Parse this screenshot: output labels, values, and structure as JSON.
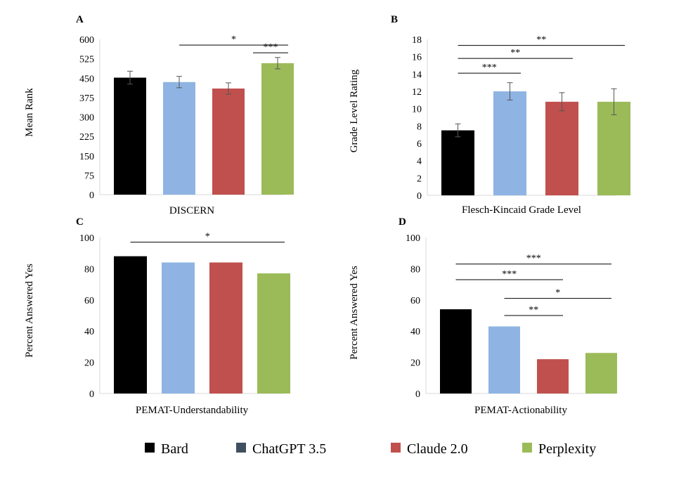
{
  "colors": {
    "bard": "#000000",
    "chatgpt": "#8fb4e3",
    "claude": "#c0504d",
    "perplexity": "#9bbb59",
    "legend_chatgpt": "#3f4f5f",
    "axis": "#d9d9d9",
    "errorbar": "#555555"
  },
  "legend": {
    "items": [
      {
        "label": "Bard",
        "color_key": "bard"
      },
      {
        "label": "ChatGPT 3.5",
        "color_key": "legend_chatgpt"
      },
      {
        "label": "Claude 2.0",
        "color_key": "claude"
      },
      {
        "label": "Perplexity",
        "color_key": "perplexity"
      }
    ]
  },
  "chart_data": [
    {
      "panel": "A",
      "type": "bar",
      "xlabel": "DISCERN",
      "ylabel": "Mean Rank",
      "ylim": [
        0,
        600
      ],
      "yticks": [
        0,
        75,
        150,
        225,
        300,
        375,
        450,
        525,
        600
      ],
      "values": [
        452,
        435,
        410,
        508
      ],
      "errors": [
        25,
        22,
        22,
        22
      ],
      "significance": [
        {
          "from": 1,
          "to": 3,
          "label": "*",
          "y": 578
        },
        {
          "from": 2.5,
          "to": 3,
          "label": "***",
          "y": 548
        }
      ]
    },
    {
      "panel": "B",
      "type": "bar",
      "xlabel": "Flesch-Kincaid Grade Level",
      "ylabel": "Grade Level Rating",
      "ylim": [
        0,
        18
      ],
      "yticks": [
        0,
        2,
        4,
        6,
        8,
        10,
        12,
        14,
        16,
        18
      ],
      "values": [
        7.5,
        12.0,
        10.8,
        10.8
      ],
      "errors": [
        0.75,
        1.0,
        1.05,
        1.5
      ],
      "significance": [
        {
          "from": 0,
          "to": 3,
          "label": "**",
          "y": 17.3
        },
        {
          "from": 0,
          "to": 2,
          "label": "**",
          "y": 15.8
        },
        {
          "from": 0,
          "to": 1,
          "label": "***",
          "y": 14.1
        }
      ]
    },
    {
      "panel": "C",
      "type": "bar",
      "xlabel": "PEMAT-Understandability",
      "ylabel": "Percent Answered Yes",
      "ylim": [
        0,
        100
      ],
      "yticks": [
        0,
        20,
        40,
        60,
        80,
        100
      ],
      "values": [
        88,
        84,
        84,
        77
      ],
      "errors": null,
      "significance": [
        {
          "from": 0,
          "to": 3,
          "label": "*",
          "y": 97
        }
      ]
    },
    {
      "panel": "D",
      "type": "bar",
      "xlabel": "PEMAT-Actionability",
      "ylabel": "Percent Answered Yes",
      "ylim": [
        0,
        100
      ],
      "yticks": [
        0,
        20,
        40,
        60,
        80,
        100
      ],
      "values": [
        54,
        43,
        22,
        26
      ],
      "errors": null,
      "significance": [
        {
          "from": 0,
          "to": 3,
          "label": "***",
          "y": 83
        },
        {
          "from": 0,
          "to": 2,
          "label": "***",
          "y": 73
        },
        {
          "from": 1,
          "to": 3,
          "label": "*",
          "y": 61
        },
        {
          "from": 1,
          "to": 2,
          "label": "**",
          "y": 50
        }
      ]
    }
  ]
}
